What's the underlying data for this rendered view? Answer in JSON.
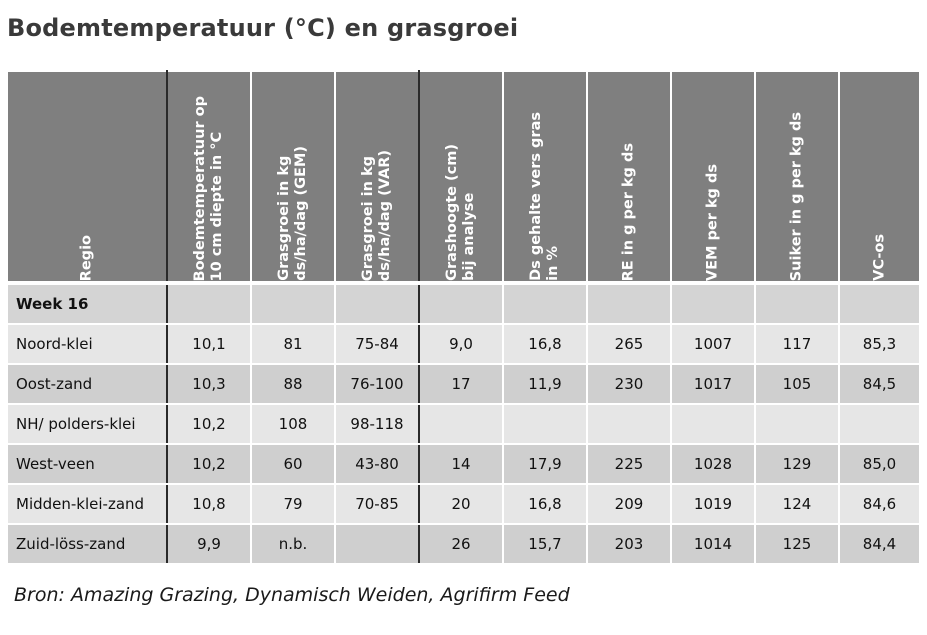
{
  "title": "Bodemtemperatuur (°C) en grasgroei",
  "headers": [
    "Regio",
    "Bodemtemperatuur op\n10 cm diepte in °C",
    "Grasgroei in kg\nds/ha/dag (GEM)",
    "Grasgroei in kg\nds/ha/dag (VAR)",
    "Grashoogte (cm)\nbij analyse",
    "Ds gehalte vers gras\nin %",
    "RE in g per kg ds",
    "VEM per kg ds",
    "Suiker in g per kg ds",
    "VC-os"
  ],
  "week_label": "Week 16",
  "rows": [
    [
      "Noord-klei",
      "10,1",
      "81",
      "75-84",
      "9,0",
      "16,8",
      "265",
      "1007",
      "117",
      "85,3"
    ],
    [
      "Oost-zand",
      "10,3",
      "88",
      "76-100",
      "17",
      "11,9",
      "230",
      "1017",
      "105",
      "84,5"
    ],
    [
      "NH/ polders-klei",
      "10,2",
      "108",
      "98-118",
      "",
      "",
      "",
      "",
      "",
      ""
    ],
    [
      "West-veen",
      "10,2",
      "60",
      "43-80",
      "14",
      "17,9",
      "225",
      "1028",
      "129",
      "85,0"
    ],
    [
      "Midden-klei-zand",
      "10,8",
      "79",
      "70-85",
      "20",
      "16,8",
      "209",
      "1019",
      "124",
      "84,6"
    ],
    [
      "Zuid-löss-zand",
      "9,9",
      "n.b.",
      "",
      "26",
      "15,7",
      "203",
      "1014",
      "125",
      "84,4"
    ]
  ],
  "source": "Bron: Amazing Grazing, Dynamisch Weiden, Agrifirm Feed",
  "colors": {
    "header_bg": "#7f7f7f",
    "row_light": "#e6e6e6",
    "row_dark": "#cfcfcf",
    "border": "#2a2a2a"
  }
}
